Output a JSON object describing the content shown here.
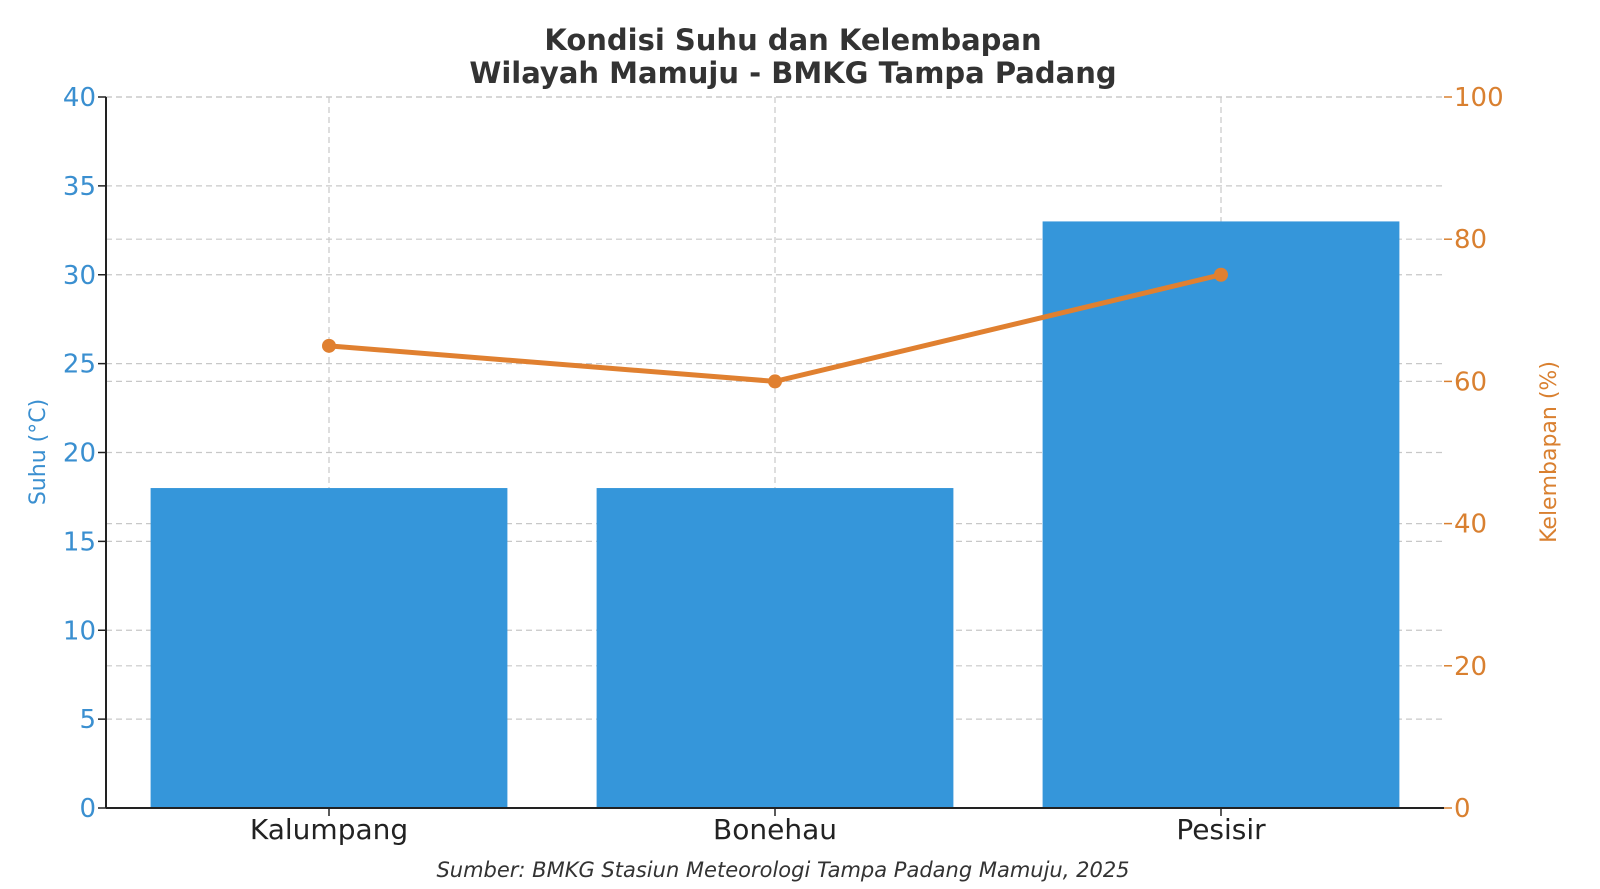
{
  "chart_data": {
    "type": "bar+line",
    "title_line1": "Kondisi Suhu dan Kelembapan",
    "title_line2": "Wilayah Mamuju - BMKG Tampa Padang",
    "categories": [
      "Kalumpang",
      "Bonehau",
      "Pesisir"
    ],
    "bar_series": {
      "values": [
        18,
        18,
        33
      ],
      "axis": "left",
      "color": "#3596da"
    },
    "line_series": {
      "values": [
        65,
        60,
        75
      ],
      "axis": "right",
      "color": "#e08030"
    },
    "ylabel_left": "Suhu (°C)",
    "ylabel_right": "Kelembapan (%)",
    "ylim_left": [
      0,
      40
    ],
    "ylim_right": [
      0,
      100
    ],
    "yticks_left": [
      0,
      5,
      10,
      15,
      20,
      25,
      30,
      35,
      40
    ],
    "yticks_right": [
      0,
      20,
      40,
      60,
      80,
      100
    ],
    "grid": true,
    "left_axis_color": "#3a8fd0",
    "right_axis_color": "#d98030",
    "source": "Sumber: BMKG Stasiun Meteorologi Tampa Padang Mamuju, 2025"
  }
}
